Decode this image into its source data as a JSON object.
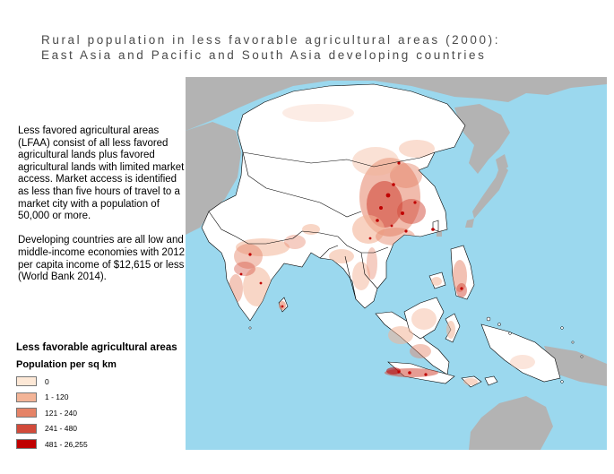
{
  "title": {
    "line1": "Rural population in less favorable agricultural areas (2000):",
    "line2": "East Asia and Pacific and South Asia developing countries"
  },
  "description": {
    "paragraph1": "Less favored agricultural areas (LFAA) consist of all less favored agricultural lands plus favored agricultural lands with limited market access. Market access is identified as less than five hours of travel to a market city with a population of 50,000 or more.",
    "paragraph2": "Developing countries are all low and middle-income economies with 2012 per capita income of $12,615 or less (World Bank 2014)."
  },
  "legend": {
    "title": "Less favorable agricultural areas",
    "subtitle": "Population per sq km",
    "items": [
      {
        "label": "0",
        "color": "#fde8d6"
      },
      {
        "label": "1 - 120",
        "color": "#f3b497"
      },
      {
        "label": "121 - 240",
        "color": "#e58367"
      },
      {
        "label": "241 - 480",
        "color": "#d24a3a"
      },
      {
        "label": "481 - 26,255",
        "color": "#c00000"
      }
    ]
  },
  "map_colors": {
    "ocean": "#9bd8ee",
    "non_study_land": "#b3b3b3",
    "study_land": "#ffffff",
    "borders": "#000000"
  }
}
